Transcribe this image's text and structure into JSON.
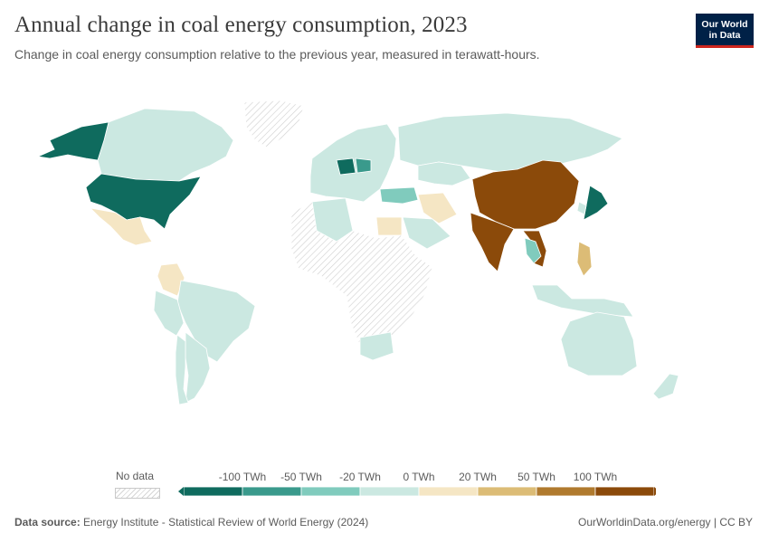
{
  "header": {
    "title": "Annual change in coal energy consumption, 2023",
    "subtitle": "Change in coal energy consumption relative to the previous year, measured in terawatt-hours."
  },
  "logo": {
    "line1": "Our World",
    "line2": "in Data"
  },
  "legend": {
    "no_data_label": "No data",
    "tick_labels": [
      "-100 TWh",
      "-50 TWh",
      "-20 TWh",
      "0 TWh",
      "20 TWh",
      "50 TWh",
      "100 TWh"
    ],
    "bin_colors": [
      "#0f6b5e",
      "#3a9a8c",
      "#80cbbd",
      "#cbe8e1",
      "#f5e6c4",
      "#dcbc76",
      "#b07a2e",
      "#8b4a0a"
    ]
  },
  "map_colors": {
    "ocean": "#ffffff",
    "no_data": "#eeeeee",
    "border": "#ffffff"
  },
  "regions": [
    {
      "name": "Canada",
      "bin": 3
    },
    {
      "name": "Alaska (United States)",
      "bin": 0
    },
    {
      "name": "United States",
      "bin": 0
    },
    {
      "name": "Mexico",
      "bin": 4
    },
    {
      "name": "Greenland",
      "bin": -1
    },
    {
      "name": "Colombia",
      "bin": 4
    },
    {
      "name": "Brazil",
      "bin": 3
    },
    {
      "name": "Peru",
      "bin": 3
    },
    {
      "name": "Argentina",
      "bin": 3
    },
    {
      "name": "Chile",
      "bin": 3
    },
    {
      "name": "Europe",
      "bin": 3
    },
    {
      "name": "Germany",
      "bin": 0
    },
    {
      "name": "Poland",
      "bin": 1
    },
    {
      "name": "Turkey",
      "bin": 2
    },
    {
      "name": "Russia",
      "bin": 3
    },
    {
      "name": "Kazakhstan",
      "bin": 3
    },
    {
      "name": "Iran",
      "bin": 4
    },
    {
      "name": "Egypt",
      "bin": 4
    },
    {
      "name": "Algeria",
      "bin": 3
    },
    {
      "name": "Saudi Arabia",
      "bin": 3
    },
    {
      "name": "Africa (no data)",
      "bin": -1
    },
    {
      "name": "South Africa",
      "bin": 3
    },
    {
      "name": "China",
      "bin": 7
    },
    {
      "name": "India",
      "bin": 7
    },
    {
      "name": "Vietnam",
      "bin": 7
    },
    {
      "name": "Thailand",
      "bin": 2
    },
    {
      "name": "Philippines",
      "bin": 5
    },
    {
      "name": "Indonesia",
      "bin": 3
    },
    {
      "name": "Japan",
      "bin": 0
    },
    {
      "name": "South Korea",
      "bin": 3
    },
    {
      "name": "Australia",
      "bin": 3
    },
    {
      "name": "New Zealand",
      "bin": 3
    }
  ],
  "footer": {
    "source_label": "Data source:",
    "source_text": "Energy Institute - Statistical Review of World Energy (2024)",
    "right_text": "OurWorldinData.org/energy | CC BY"
  }
}
